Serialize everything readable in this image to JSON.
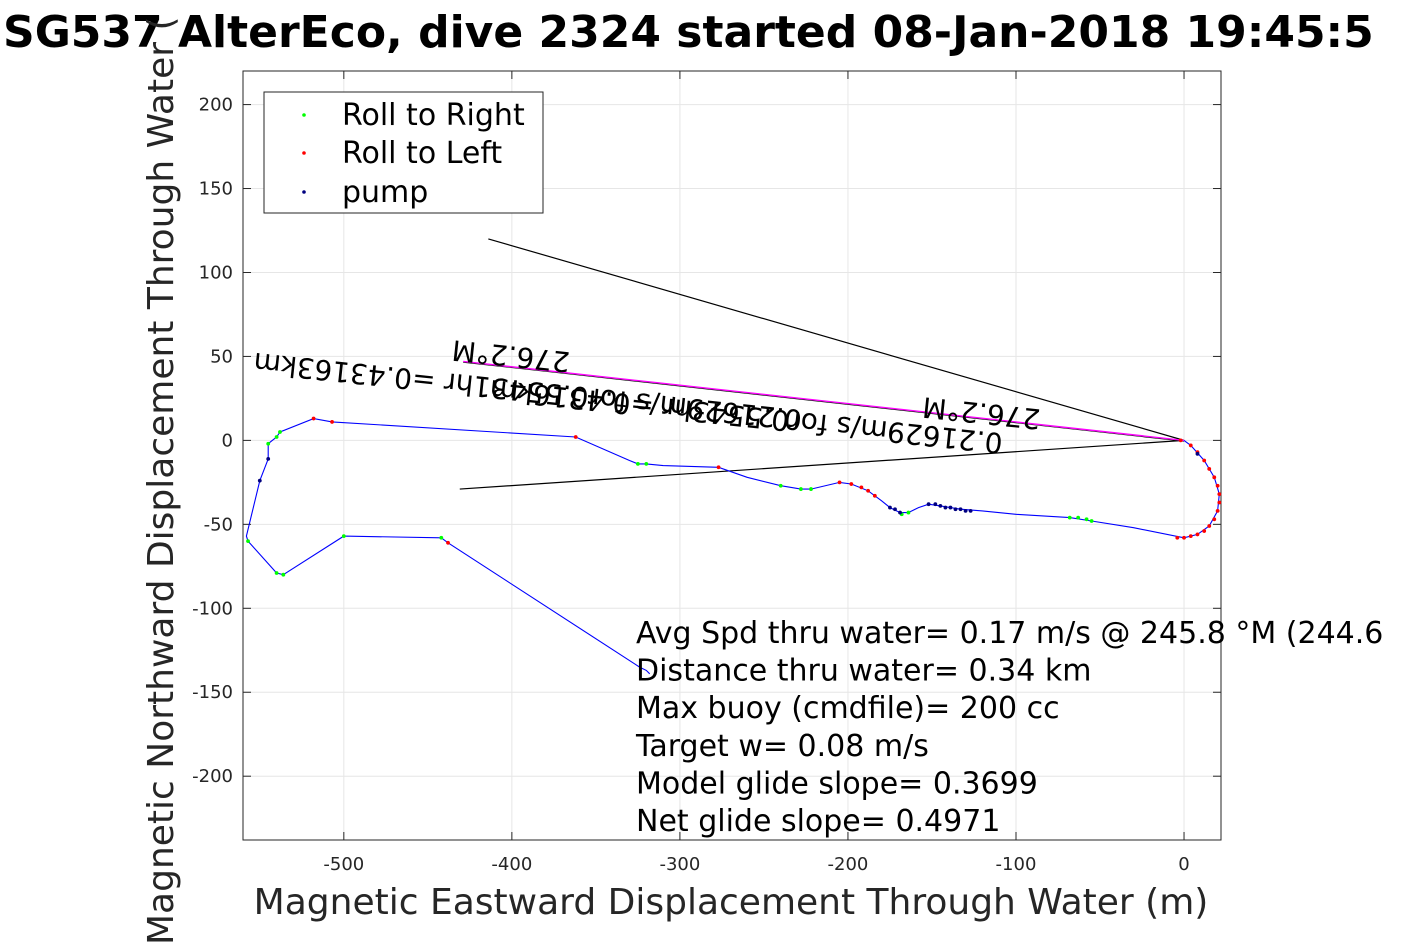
{
  "chart_data": {
    "type": "line",
    "title": "SG537 AlterEco, dive 2324 started 08-Jan-2018 19:45:5",
    "xlabel": "Magnetic Eastward Displacement Through Water (m)",
    "ylabel": "Magnetic Northward Displacement Through Water (",
    "xlim": [
      -560,
      22
    ],
    "ylim": [
      -238,
      220
    ],
    "xticks": [
      -500,
      -400,
      -300,
      -200,
      -100,
      0
    ],
    "yticks": [
      -200,
      -150,
      -100,
      -50,
      0,
      50,
      100,
      150,
      200
    ],
    "grid": true,
    "legend_position": "top-left",
    "colors": {
      "track": "#0000ff",
      "roll_right": "#00ff00",
      "roll_left": "#ff0000",
      "pump": "#000080",
      "heading_line": "#ff00ff",
      "reference_line": "#000000"
    },
    "series": [
      {
        "name": "Roll to Right",
        "points": [
          [
            -545,
            -2
          ],
          [
            -540,
            2
          ],
          [
            -538,
            5
          ],
          [
            -557,
            -60
          ],
          [
            -540,
            -79
          ],
          [
            -536,
            -80
          ],
          [
            -500,
            -57
          ],
          [
            -442,
            -58
          ],
          [
            -325,
            -14
          ],
          [
            -320,
            -14
          ],
          [
            -240,
            -27
          ],
          [
            -228,
            -29
          ],
          [
            -222,
            -29
          ],
          [
            -168,
            -44
          ],
          [
            -164,
            -43
          ],
          [
            -68,
            -46
          ],
          [
            -63,
            -46
          ],
          [
            -58,
            -47
          ],
          [
            -55,
            -48
          ]
        ]
      },
      {
        "name": "Roll to Left",
        "points": [
          [
            -518,
            13
          ],
          [
            -507,
            11
          ],
          [
            -362,
            2
          ],
          [
            -438,
            -61
          ],
          [
            -277,
            -16
          ],
          [
            -205,
            -25
          ],
          [
            -198,
            -26
          ],
          [
            -192,
            -28
          ],
          [
            -188,
            -30
          ],
          [
            -184,
            -33
          ],
          [
            -2,
            0
          ],
          [
            4,
            -3
          ],
          [
            8,
            -7
          ],
          [
            12,
            -12
          ],
          [
            15,
            -17
          ],
          [
            18,
            -22
          ],
          [
            20,
            -27
          ],
          [
            21,
            -32
          ],
          [
            21,
            -37
          ],
          [
            20,
            -42
          ],
          [
            18,
            -47
          ],
          [
            15,
            -51
          ],
          [
            12,
            -54
          ],
          [
            8,
            -56
          ],
          [
            4,
            -57
          ],
          [
            0,
            -58
          ],
          [
            -4,
            -58
          ]
        ]
      },
      {
        "name": "pump",
        "points": [
          [
            -550,
            -24
          ],
          [
            -545,
            -11
          ],
          [
            -175,
            -40
          ],
          [
            -172,
            -41
          ],
          [
            -169,
            -43
          ],
          [
            -152,
            -38
          ],
          [
            -148,
            -38
          ],
          [
            -145,
            -39
          ],
          [
            -142,
            -40
          ],
          [
            -139,
            -40
          ],
          [
            -136,
            -41
          ],
          [
            -133,
            -41
          ],
          [
            -130,
            -42
          ],
          [
            -127,
            -42
          ],
          [
            8,
            -8
          ]
        ]
      }
    ],
    "track": [
      [
        -545,
        -11
      ],
      [
        -550,
        -24
      ],
      [
        -558,
        -57
      ],
      [
        -557,
        -60
      ],
      [
        -540,
        -79
      ],
      [
        -536,
        -80
      ],
      [
        -500,
        -57
      ],
      [
        -442,
        -58
      ],
      [
        -438,
        -61
      ],
      [
        -324,
        -135
      ],
      [
        -320,
        -137
      ],
      [
        -318,
        -139
      ]
    ],
    "track_top": [
      [
        -545,
        -11
      ],
      [
        -545,
        -2
      ],
      [
        -540,
        2
      ],
      [
        -538,
        5
      ],
      [
        -518,
        13
      ],
      [
        -507,
        11
      ],
      [
        -362,
        2
      ],
      [
        -330,
        -12
      ],
      [
        -325,
        -14
      ],
      [
        -320,
        -14
      ],
      [
        -310,
        -15
      ],
      [
        -277,
        -16
      ],
      [
        -260,
        -22
      ],
      [
        -240,
        -27
      ],
      [
        -228,
        -29
      ],
      [
        -222,
        -29
      ],
      [
        -205,
        -25
      ],
      [
        -198,
        -26
      ],
      [
        -188,
        -30
      ],
      [
        -180,
        -36
      ],
      [
        -175,
        -40
      ],
      [
        -169,
        -43
      ],
      [
        -164,
        -43
      ],
      [
        -158,
        -40
      ],
      [
        -152,
        -38
      ],
      [
        -145,
        -39
      ],
      [
        -133,
        -41
      ],
      [
        -120,
        -42
      ],
      [
        -100,
        -44
      ],
      [
        -68,
        -46
      ],
      [
        -55,
        -48
      ],
      [
        -30,
        -52
      ],
      [
        0,
        -58
      ],
      [
        8,
        -56
      ],
      [
        15,
        -51
      ],
      [
        20,
        -42
      ],
      [
        21,
        -32
      ],
      [
        18,
        -22
      ],
      [
        12,
        -12
      ],
      [
        4,
        -3
      ],
      [
        0,
        0
      ]
    ],
    "heading_line": {
      "from": [
        0,
        0
      ],
      "to": [
        -429,
        47
      ]
    },
    "reference_lines": [
      {
        "from": [
          0,
          0
        ],
        "to": [
          -414,
          120
        ]
      },
      {
        "from": [
          0,
          0
        ],
        "to": [
          -431,
          -29
        ]
      }
    ],
    "annotations": [
      {
        "text": "276.2°M",
        "at": [
          -400,
          56
        ],
        "rotation": 186
      },
      {
        "text": "0.21629m/s for0.55431hr =0.43163km",
        "at": [
          -390,
          35
        ],
        "rotation": 186
      },
      {
        "text": "276.2°M",
        "at": [
          -120,
          22
        ],
        "rotation": 186
      },
      {
        "text": "0.21629m/s for0.5543hr =0.4316km",
        "at": [
          -260,
          20
        ],
        "rotation": 186
      }
    ],
    "stats": [
      "Avg Spd thru water=  0.17 m/s @ 245.8 °M (244.6",
      "Distance thru water=  0.34 km",
      "Max buoy (cmdfile)= 200 cc",
      "Target w= 0.08 m/s",
      "Model glide slope= 0.3699",
      "Net glide slope= 0.4971"
    ]
  }
}
